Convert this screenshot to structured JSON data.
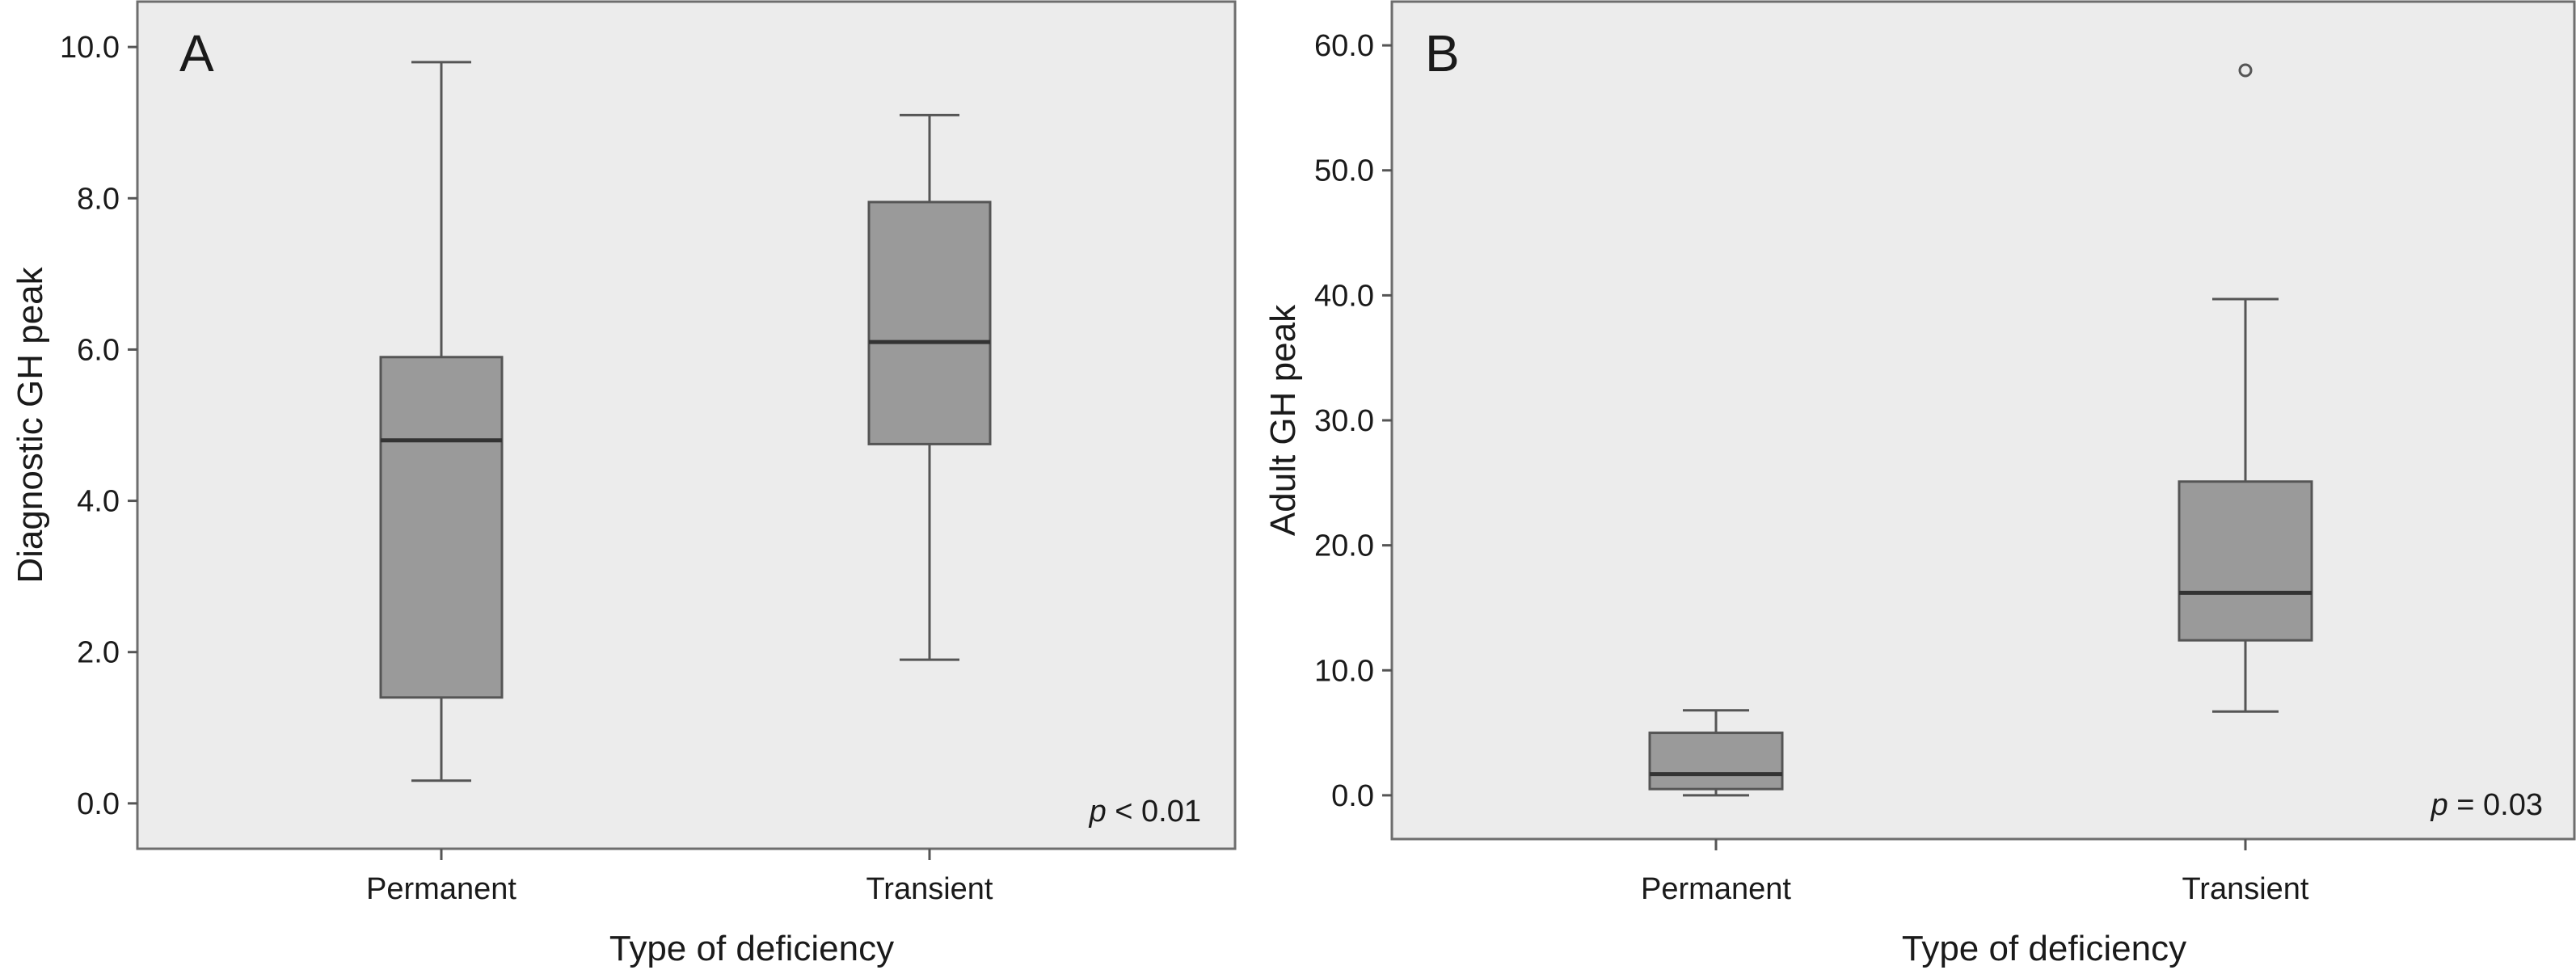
{
  "chart_data": [
    {
      "type": "box",
      "panel_label": "A",
      "categories": [
        "Permanent",
        "Transient"
      ],
      "boxes": [
        {
          "category": "Permanent",
          "whisker_low": 0.3,
          "q1": 1.4,
          "median": 4.8,
          "q3": 5.9,
          "whisker_high": 9.8,
          "outliers": []
        },
        {
          "category": "Transient",
          "whisker_low": 1.9,
          "q1": 4.75,
          "median": 6.1,
          "q3": 7.95,
          "whisker_high": 9.1,
          "outliers": []
        }
      ],
      "xlabel": "Type of deficiency",
      "ylabel": "Diagnostic GH peak",
      "ylim": [
        -0.6,
        10.6
      ],
      "yticks": [
        0,
        2,
        4,
        6,
        8,
        10
      ],
      "ytick_labels": [
        "0.0",
        "2.0",
        "4.0",
        "6.0",
        "8.0",
        "10.0"
      ],
      "annotation_italic": "p",
      "annotation_rest": " < 0.01",
      "grid": false,
      "colors": {
        "plot_bg": "#ececec",
        "box_fill": "#9a9a9a",
        "line": "#555555"
      }
    },
    {
      "type": "box",
      "panel_label": "B",
      "categories": [
        "Permanent",
        "Transient"
      ],
      "boxes": [
        {
          "category": "Permanent",
          "whisker_low": 0.0,
          "q1": 0.5,
          "median": 1.7,
          "q3": 5.0,
          "whisker_high": 6.8,
          "outliers": []
        },
        {
          "category": "Transient",
          "whisker_low": 6.7,
          "q1": 12.4,
          "median": 16.2,
          "q3": 25.1,
          "whisker_high": 39.7,
          "outliers": [
            58.0
          ]
        }
      ],
      "xlabel": "Type of deficiency",
      "ylabel": "Adult GH peak",
      "ylim": [
        -3.5,
        63.5
      ],
      "yticks": [
        0,
        10,
        20,
        30,
        40,
        50,
        60
      ],
      "ytick_labels": [
        "0.0",
        "10.0",
        "20.0",
        "30.0",
        "40.0",
        "50.0",
        "60.0"
      ],
      "annotation_italic": "p",
      "annotation_rest": " = 0.03",
      "grid": false,
      "colors": {
        "plot_bg": "#ececec",
        "box_fill": "#9a9a9a",
        "line": "#555555"
      }
    }
  ]
}
